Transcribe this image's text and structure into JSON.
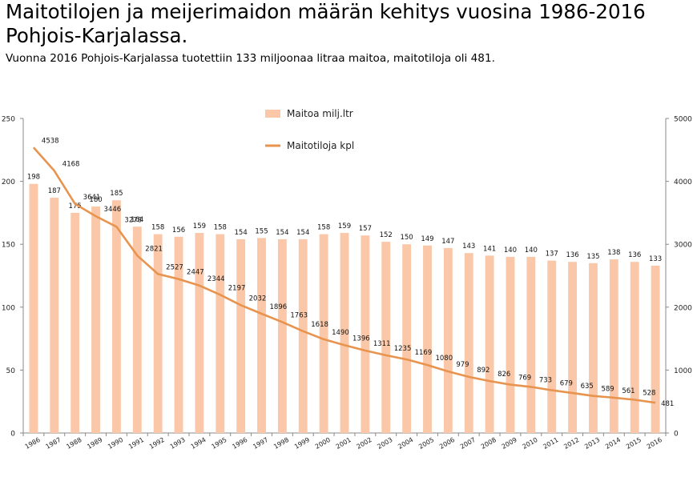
{
  "header": {
    "title_line1": "Maitotilojen ja meijerimaidon määrän kehitys vuosina 1986-2016",
    "title_line2": "Pohjois-Karjalassa.",
    "subtitle": "Vuonna 2016 Pohjois-Karjalassa tuotettiin 133 miljoonaa litraa maitoa, maitotiloja oli 481."
  },
  "chart_data": {
    "type": "bar",
    "categories": [
      "1986",
      "1987",
      "1988",
      "1989",
      "1990",
      "1991",
      "1992",
      "1993",
      "1994",
      "1995",
      "1996",
      "1997",
      "1998",
      "1999",
      "2000",
      "2001",
      "2002",
      "2003",
      "2004",
      "2005",
      "2006",
      "2007",
      "2008",
      "2009",
      "2010",
      "2011",
      "2012",
      "2013",
      "2014",
      "2015",
      "2016"
    ],
    "series": [
      {
        "name": "Maitoa milj.ltr",
        "type": "bar",
        "axis": "left",
        "color": "#fac8a8",
        "values": [
          198,
          187,
          175,
          180,
          185,
          164,
          158,
          156,
          159,
          158,
          154,
          155,
          154,
          154,
          158,
          159,
          157,
          152,
          150,
          149,
          147,
          143,
          141,
          140,
          140,
          137,
          136,
          135,
          138,
          136,
          133
        ]
      },
      {
        "name": "Maitotiloja kpl",
        "type": "line",
        "axis": "right",
        "color": "#e8934e",
        "values": [
          4538,
          4168,
          3641,
          3446,
          3278,
          2821,
          2527,
          2447,
          2344,
          2197,
          2032,
          1896,
          1763,
          1618,
          1490,
          1396,
          1311,
          1235,
          1169,
          1080,
          979,
          892,
          826,
          769,
          733,
          679,
          635,
          589,
          561,
          528,
          481
        ]
      }
    ],
    "ylim": [
      0,
      250
    ],
    "y2lim": [
      0,
      5000
    ],
    "yticks": [
      "0",
      "50",
      "100",
      "150",
      "200",
      "250"
    ],
    "y2ticks": [
      "0",
      "1000",
      "2000",
      "3000",
      "4000",
      "5000"
    ],
    "legend_placement": "top-center",
    "grid": false
  }
}
